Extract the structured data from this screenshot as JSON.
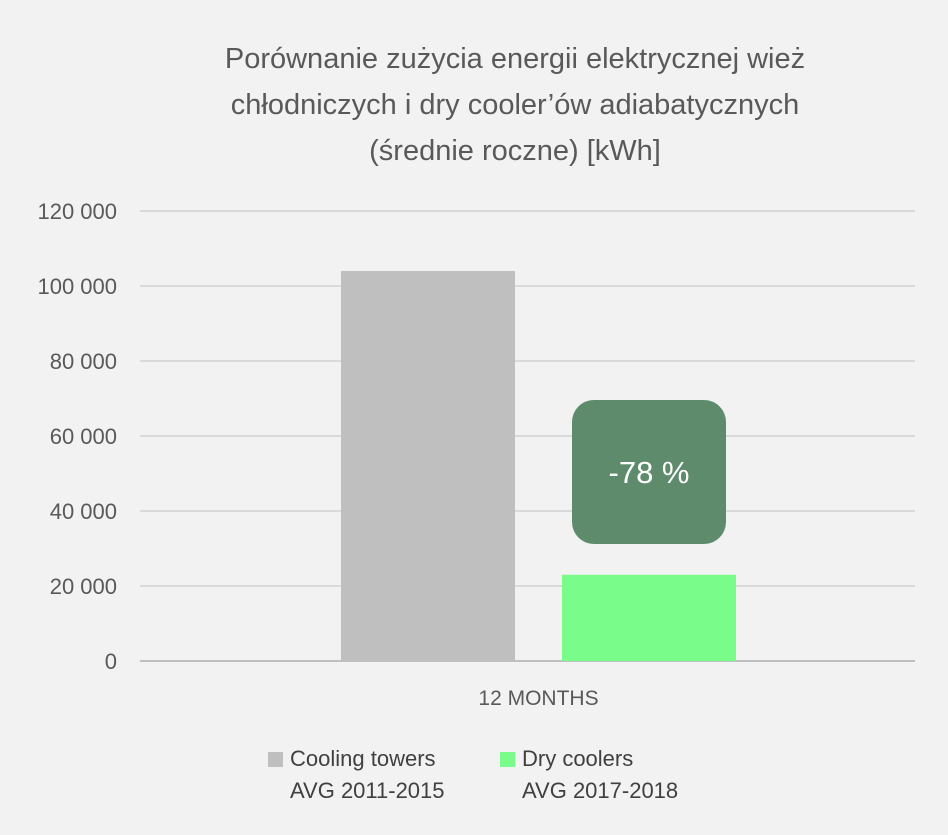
{
  "chart_data": {
    "type": "bar",
    "title_lines": [
      "Porównanie zużycia energii elektrycznej wież",
      "chłodniczych i dry cooler’ów adiabatycznych",
      "(średnie roczne) [kWh]"
    ],
    "categories": [
      "12 MONTHS"
    ],
    "series": [
      {
        "name": "Cooling towers",
        "subtitle": "AVG 2011-2015",
        "values": [
          104000
        ],
        "color": "#bfbfbf"
      },
      {
        "name": "Dry coolers",
        "subtitle": "AVG 2017-2018",
        "values": [
          23000
        ],
        "color": "#7afc8a"
      }
    ],
    "ylim": [
      0,
      120000
    ],
    "yticks": [
      0,
      20000,
      40000,
      60000,
      80000,
      100000,
      120000
    ],
    "ytick_labels": [
      "0",
      "20 000",
      "40 000",
      "60 000",
      "80 000",
      "100 000",
      "120 000"
    ],
    "grid": true,
    "legend_position": "bottom",
    "annotation": {
      "text": "-78 %",
      "color": "#5e8b6c"
    }
  }
}
